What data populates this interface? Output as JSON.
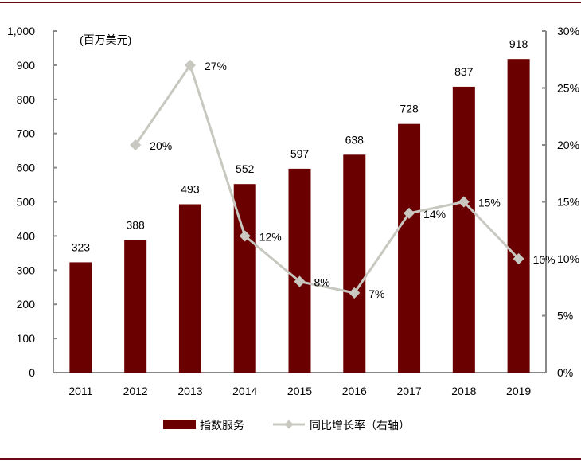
{
  "chart_data": {
    "type": "bar+line",
    "unit_label": "(百万美元)",
    "categories": [
      "2011",
      "2012",
      "2013",
      "2014",
      "2015",
      "2016",
      "2017",
      "2018",
      "2019"
    ],
    "series": [
      {
        "name": "指数服务",
        "type": "bar",
        "axis": "left",
        "color": "#6b0000",
        "values": [
          323,
          388,
          493,
          552,
          597,
          638,
          728,
          837,
          918
        ],
        "labels": [
          "323",
          "388",
          "493",
          "552",
          "597",
          "638",
          "728",
          "837",
          "918"
        ]
      },
      {
        "name": "同比增长率（右轴）",
        "type": "line",
        "axis": "right",
        "color": "#c8c8c0",
        "values": [
          null,
          20,
          27,
          12,
          8,
          7,
          14,
          15,
          10
        ],
        "labels": [
          "",
          "20%",
          "27%",
          "12%",
          "8%",
          "7%",
          "14%",
          "15%",
          "10%"
        ]
      }
    ],
    "left_axis": {
      "ylim": [
        0,
        1000
      ],
      "ticks": [
        "0",
        "100",
        "200",
        "300",
        "400",
        "500",
        "600",
        "700",
        "800",
        "900",
        "1,000"
      ]
    },
    "right_axis": {
      "ylim": [
        0,
        30
      ],
      "ticks": [
        "0%",
        "5%",
        "10%",
        "15%",
        "20%",
        "25%",
        "30%"
      ]
    },
    "legend_placement": "bottom",
    "grid": false,
    "frame_color": "#6b0a14"
  }
}
